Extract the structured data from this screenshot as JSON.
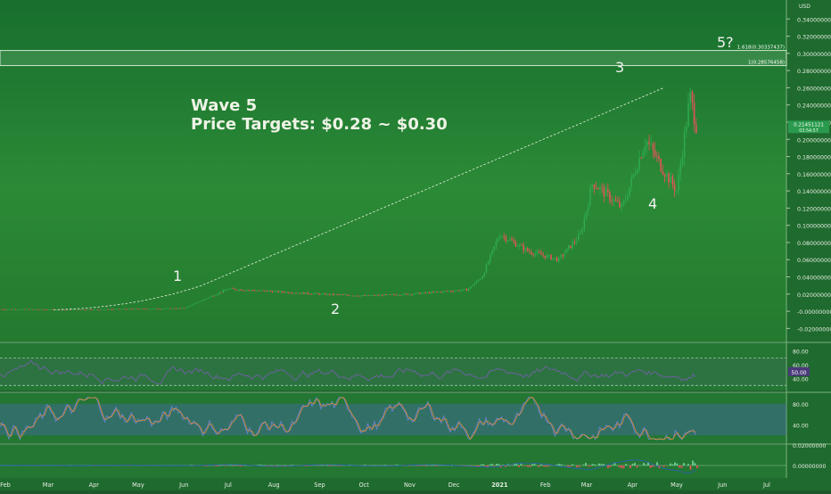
{
  "chart_data": {
    "type": "candlestick",
    "title": "",
    "annotation": {
      "line1": "Wave 5",
      "line2": "Price Targets: $0.28 ~ $0.30"
    },
    "wave_labels": [
      "1",
      "2",
      "3",
      "4",
      "5?"
    ],
    "waves": [
      {
        "label": "1",
        "date": "2020-06-01",
        "price": 0.03
      },
      {
        "label": "2",
        "date": "2020-09-15",
        "price": 0.015
      },
      {
        "label": "3",
        "date": "2021-04-15",
        "price": 0.26
      },
      {
        "label": "4",
        "date": "2021-04-25",
        "price": 0.13
      }
    ],
    "fib_levels": [
      {
        "label": "1.618(0.30337437)",
        "value": 0.30337437
      },
      {
        "label": "1(0.28576458)",
        "value": 0.28576458
      }
    ],
    "price_axis": {
      "unit": "USD",
      "ylim": [
        -0.03,
        0.36
      ],
      "ticks": [
        "0.34000000",
        "0.32000000",
        "0.30000000",
        "0.28000000",
        "0.26000000",
        "0.24000000",
        "0.22000000",
        "0.20000000",
        "0.18000000",
        "0.16000000",
        "0.14000000",
        "0.12000000",
        "0.10000000",
        "0.08000000",
        "0.06000000",
        "0.04000000",
        "0.02000000",
        "-0.00000000",
        "-0.02000000"
      ],
      "current_price": "0.21451121",
      "current_price_sub": "03:54:57"
    },
    "time_axis": [
      "Feb",
      "Mar",
      "Apr",
      "May",
      "Jun",
      "Jul",
      "Aug",
      "Sep",
      "Oct",
      "Nov",
      "Dec",
      "2021",
      "Feb",
      "Mar",
      "Apr",
      "May",
      "Jun",
      "Jul"
    ],
    "price_series": [
      [
        "2020-02-01",
        0.0024
      ],
      [
        "2020-03-15",
        0.0018
      ],
      [
        "2020-05-01",
        0.0026
      ],
      [
        "2020-06-01",
        0.0035
      ],
      [
        "2020-07-01",
        0.026
      ],
      [
        "2020-08-01",
        0.023
      ],
      [
        "2020-09-01",
        0.02
      ],
      [
        "2020-10-01",
        0.018
      ],
      [
        "2020-11-01",
        0.02
      ],
      [
        "2020-12-10",
        0.025
      ],
      [
        "2020-12-20",
        0.04
      ],
      [
        "2021-01-01",
        0.09
      ],
      [
        "2021-01-20",
        0.07
      ],
      [
        "2021-02-10",
        0.06
      ],
      [
        "2021-02-25",
        0.09
      ],
      [
        "2021-03-05",
        0.15
      ],
      [
        "2021-03-25",
        0.12
      ],
      [
        "2021-04-10",
        0.2
      ],
      [
        "2021-04-20",
        0.17
      ],
      [
        "2021-05-01",
        0.14
      ],
      [
        "2021-05-10",
        0.25
      ],
      [
        "2021-05-15",
        0.21
      ]
    ],
    "rsi": {
      "ticks": [
        "80.00",
        "60.00",
        "40.00"
      ],
      "value": "50.00"
    },
    "stoch": {
      "ticks": [
        "80.00",
        "40.00"
      ]
    },
    "macd": {
      "ticks": [
        "0.02000000",
        "0.00000000"
      ]
    }
  }
}
